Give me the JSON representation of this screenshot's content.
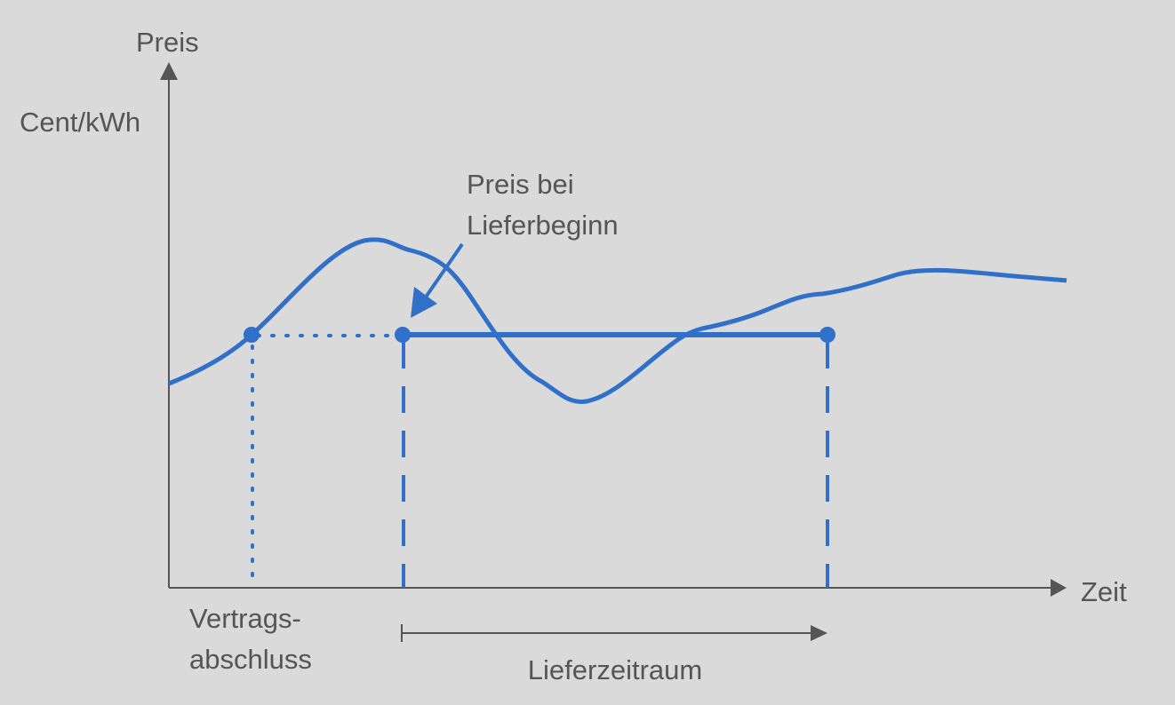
{
  "axes": {
    "y_label": "Preis",
    "y_unit": "Cent/kWh",
    "x_label": "Zeit"
  },
  "annotations": {
    "price_at_delivery": [
      "Preis bei",
      "Lieferbeginn"
    ],
    "contract": [
      "Vertrags-",
      "abschluss"
    ],
    "delivery_period": "Lieferzeitraum"
  }
}
